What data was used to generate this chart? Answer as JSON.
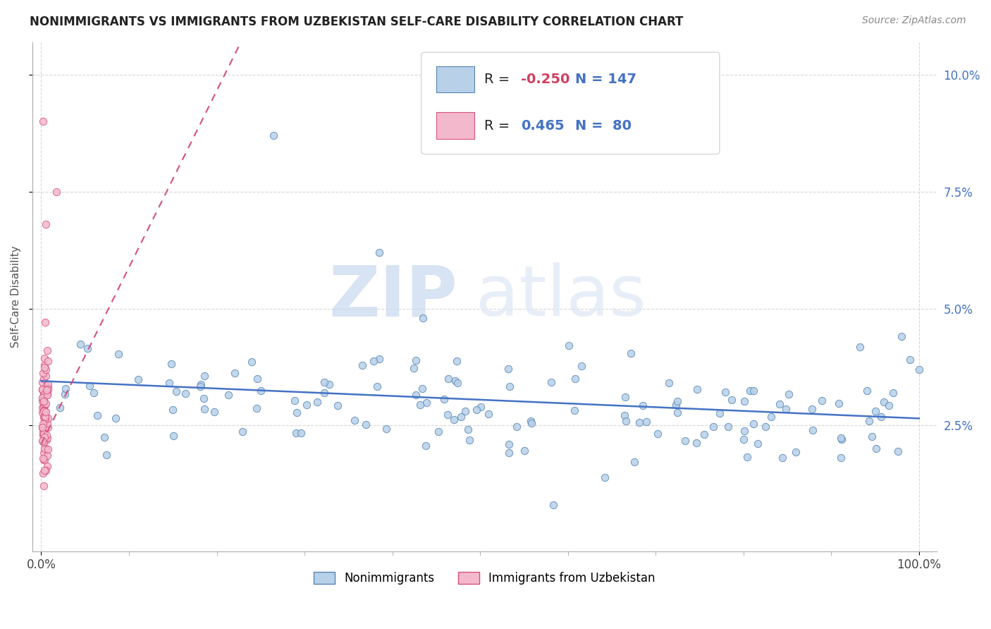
{
  "title": "NONIMMIGRANTS VS IMMIGRANTS FROM UZBEKISTAN SELF-CARE DISABILITY CORRELATION CHART",
  "source": "Source: ZipAtlas.com",
  "ylabel": "Self-Care Disability",
  "legend_labels": [
    "Nonimmigrants",
    "Immigrants from Uzbekistan"
  ],
  "R_nonimm": -0.25,
  "N_nonimm": 147,
  "R_imm": 0.465,
  "N_imm": 80,
  "nonimm_fill": "#b8d0e8",
  "nonimm_edge": "#5585b5",
  "imm_fill": "#f4b8cc",
  "imm_edge": "#d45080",
  "nonimm_line_color": "#4472c4",
  "imm_line_color": "#d45080",
  "background_color": "#ffffff",
  "grid_color": "#cccccc",
  "watermark_zip": "ZIP",
  "watermark_atlas": "atlas",
  "title_color": "#222222",
  "title_fontsize": 12,
  "ylabel_color": "#555555",
  "right_tick_color": "#4472c4",
  "legend_box_nonimm_fill": "#b8d0e8",
  "legend_box_nonimm_edge": "#5585b5",
  "legend_box_imm_fill": "#f4b8cc",
  "legend_box_imm_edge": "#d45080",
  "legend_R_color": "#d04060",
  "legend_N_color": "#4472c4",
  "ylim_min": -0.002,
  "ylim_max": 0.107,
  "xlim_min": -0.01,
  "xlim_max": 1.02
}
